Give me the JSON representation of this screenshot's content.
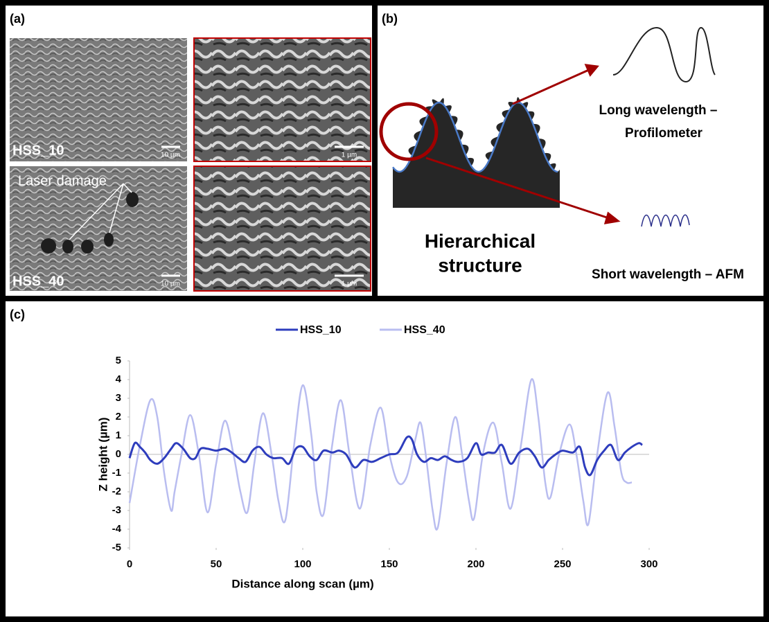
{
  "panel_a": {
    "label": "(a)",
    "images": [
      {
        "label": "HSS_10",
        "scale_bar": "10 µm"
      },
      {
        "scale_bar": "1 µm"
      },
      {
        "label": "HSS_40",
        "scale_bar": "10 µm",
        "annotation": "Laser damage"
      },
      {
        "scale_bar": "1 µm"
      }
    ]
  },
  "panel_b": {
    "label": "(b)",
    "long": [
      "Long wavelength –",
      "Profilometer"
    ],
    "title": [
      "Hierarchical",
      "structure"
    ],
    "short": "Short wavelength – AFM"
  },
  "chart_data": {
    "type": "line",
    "label": "(c)",
    "x_label": "Distance along scan (µm)",
    "y_label": "Z height (µm)",
    "xlim": [
      0,
      300
    ],
    "xticks": [
      0,
      50,
      100,
      150,
      200,
      250,
      300
    ],
    "ylim": [
      -5,
      5
    ],
    "yticks": [
      -5,
      -4,
      -3,
      -2,
      -1,
      0,
      1,
      2,
      3,
      4,
      5
    ],
    "legend": "top",
    "series": [
      {
        "name": "HSS_10",
        "color": "#2e3dbd",
        "x": [
          0,
          3,
          6,
          9,
          12,
          16,
          20,
          24,
          27,
          31,
          35,
          38,
          41,
          45,
          50,
          55,
          59,
          63,
          67,
          71,
          75,
          79,
          83,
          88,
          92,
          96,
          100,
          104,
          108,
          112,
          117,
          121,
          125,
          130,
          135,
          140,
          145,
          150,
          155,
          160,
          163,
          166,
          170,
          174,
          178,
          182,
          186,
          190,
          195,
          200,
          203,
          207,
          211,
          215,
          220,
          225,
          230,
          234,
          238,
          242,
          246,
          250,
          256,
          260,
          263,
          266,
          270,
          274,
          278,
          282,
          286,
          290,
          294,
          296
        ],
        "values": [
          -0.2,
          0.6,
          0.4,
          0.1,
          -0.3,
          -0.5,
          -0.2,
          0.3,
          0.6,
          0.3,
          -0.2,
          -0.2,
          0.3,
          0.3,
          0.2,
          0.3,
          0.1,
          -0.2,
          -0.4,
          0.2,
          0.4,
          0,
          -0.2,
          -0.2,
          -0.5,
          0.3,
          0.4,
          -0.1,
          -0.3,
          0.2,
          0.1,
          0.2,
          0,
          -0.7,
          -0.3,
          -0.4,
          -0.2,
          0,
          0.1,
          0.9,
          0.8,
          0,
          -0.4,
          -0.2,
          -0.3,
          -0.1,
          -0.3,
          -0.4,
          -0.2,
          0.6,
          0,
          0.1,
          0.1,
          0.5,
          -0.5,
          0.1,
          0.3,
          -0.1,
          -0.7,
          -0.3,
          0,
          0.2,
          0.1,
          0.4,
          -0.7,
          -1.1,
          -0.3,
          0.2,
          0.5,
          -0.3,
          0.1,
          0.4,
          0.6,
          0.5
        ]
      },
      {
        "name": "HSS_40",
        "color": "#b9bdf0",
        "x": [
          0,
          6,
          12,
          16,
          20,
          24,
          26,
          30,
          35,
          40,
          45,
          50,
          55,
          60,
          64,
          68,
          72,
          77,
          82,
          86,
          90,
          95,
          100,
          105,
          108,
          112,
          117,
          122,
          127,
          133,
          139,
          145,
          150,
          155,
          160,
          165,
          168,
          171,
          175,
          178,
          183,
          188,
          192,
          196,
          199,
          204,
          210,
          215,
          220,
          226,
          232,
          236,
          240,
          243,
          248,
          254,
          258,
          262,
          265,
          270,
          276,
          280,
          284,
          287,
          290
        ],
        "values": [
          -2.6,
          0.5,
          2.9,
          2.0,
          -1.0,
          -3.0,
          -2.0,
          0,
          2.1,
          0,
          -3.1,
          -0.5,
          1.8,
          0,
          -2.0,
          -3.1,
          -0.5,
          2.2,
          0,
          -2.5,
          -3.5,
          0.5,
          3.7,
          1.0,
          -2.0,
          -3.2,
          0.5,
          2.9,
          0,
          -2.9,
          0.5,
          2.5,
          0,
          -1.5,
          -1.2,
          0.8,
          1.7,
          0,
          -3.0,
          -3.9,
          -0.5,
          2.0,
          0,
          -2.5,
          -3.4,
          0,
          1.7,
          -0.5,
          -2.9,
          0.5,
          4.0,
          2.0,
          -1.5,
          -2.3,
          0,
          1.6,
          0,
          -2.5,
          -3.7,
          0,
          3.3,
          1.5,
          -1.0,
          -1.5,
          -1.5
        ]
      }
    ]
  }
}
